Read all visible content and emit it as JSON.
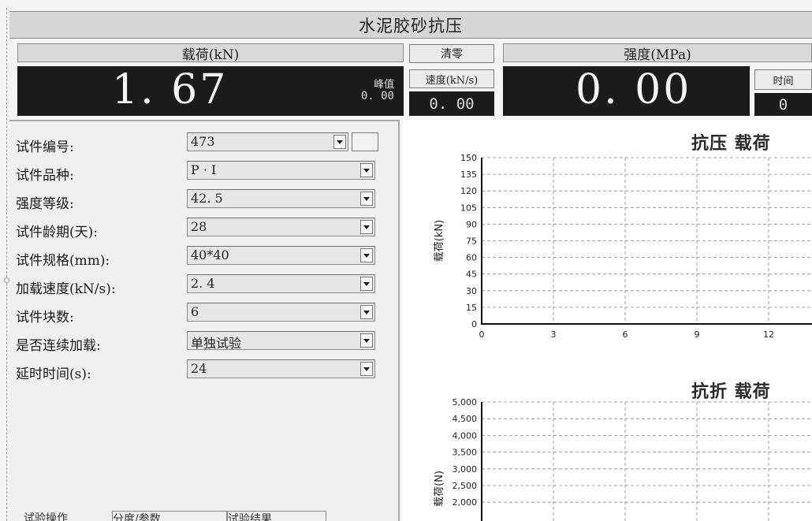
{
  "title": "水泥胶砂抗压",
  "load": {
    "label": "载荷(kN)",
    "value": "1. 67",
    "peak_label": "峰值",
    "peak_value": "0. 00"
  },
  "clear_button": "清零",
  "speed": {
    "label": "速度(kN/s)",
    "value": "0. 00"
  },
  "strength": {
    "label": "强度(MPa)",
    "value": "0. 00"
  },
  "time": {
    "label": "时间",
    "value": "0"
  },
  "form": {
    "fields": [
      {
        "label": "试件编号:",
        "value": "473"
      },
      {
        "label": "试件品种:",
        "value": "P · I"
      },
      {
        "label": "强度等级:",
        "value": "42. 5"
      },
      {
        "label": "试件龄期(天):",
        "value": "28"
      },
      {
        "label": "试件规格(mm):",
        "value": "40*40"
      },
      {
        "label": "加载速度(kN/s):",
        "value": "2. 4"
      },
      {
        "label": "试件块数:",
        "value": "6"
      },
      {
        "label": "是否连续加载:",
        "value": "单独试验"
      },
      {
        "label": "延时时间(s):",
        "value": "24"
      }
    ]
  },
  "bottom_tabs": [
    "试验操作",
    "分度/参数",
    "试验结果"
  ],
  "chart_data": [
    {
      "type": "line",
      "title": "抗压 载荷",
      "ylabel": "载荷(kN)",
      "xlabel": "",
      "ylim": [
        0,
        150
      ],
      "yticks": [
        0,
        15,
        30,
        45,
        60,
        75,
        90,
        105,
        120,
        135,
        150
      ],
      "xticks": [
        0,
        3,
        6,
        9,
        12
      ],
      "grid": true,
      "series": []
    },
    {
      "type": "line",
      "title": "抗折 载荷",
      "ylabel": "载荷(N)",
      "xlabel": "",
      "yticks": [
        "5,000",
        "4,500",
        "4,000",
        "3,500",
        "3,000",
        "2,500",
        "2,000"
      ],
      "yticks_numeric": [
        5000,
        4500,
        4000,
        3500,
        3000,
        2500,
        2000
      ],
      "grid": true,
      "series": []
    }
  ]
}
